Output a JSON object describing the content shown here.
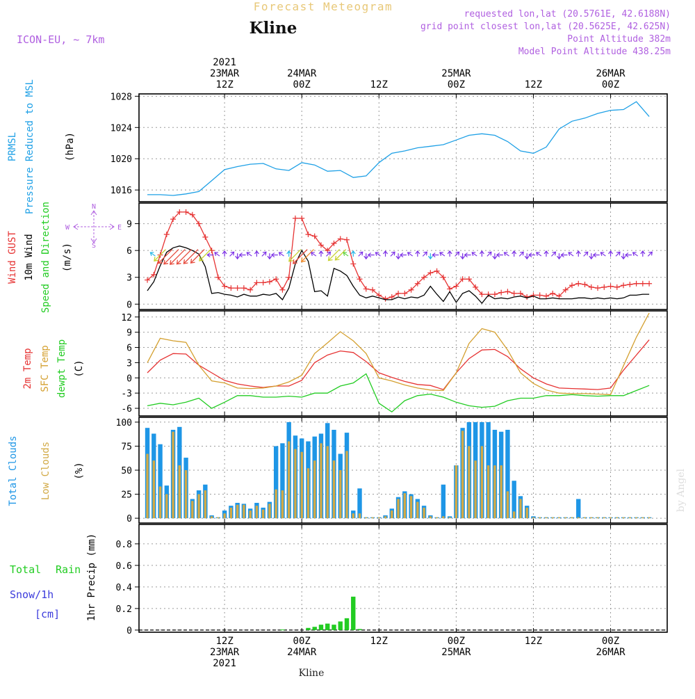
{
  "header": {
    "model": "ICON-EU, ~ 7km",
    "top_title": "Forecast Meteogram",
    "station": "Kline",
    "info_lines": [
      "requested lon,lat (20.5761E, 42.6188N)",
      "grid point closest lon,lat (20.5625E, 42.625N)",
      "Point Altitude 382m",
      "Model Point Altitude 438.25m"
    ]
  },
  "time_axis": {
    "top_labels": [
      {
        "h": 12,
        "lines": [
          "2021",
          "23MAR",
          "12Z"
        ]
      },
      {
        "h": 24,
        "lines": [
          "24MAR",
          "00Z"
        ]
      },
      {
        "h": 36,
        "lines": [
          "12Z"
        ]
      },
      {
        "h": 48,
        "lines": [
          "25MAR",
          "00Z"
        ]
      },
      {
        "h": 60,
        "lines": [
          "12Z"
        ]
      },
      {
        "h": 72,
        "lines": [
          "26MAR",
          "00Z"
        ]
      }
    ],
    "bottom_labels": [
      {
        "h": 12,
        "lines": [
          "12Z",
          "23MAR",
          "2021"
        ]
      },
      {
        "h": 24,
        "lines": [
          "00Z",
          "24MAR"
        ]
      },
      {
        "h": 36,
        "lines": [
          "12Z"
        ]
      },
      {
        "h": 48,
        "lines": [
          "00Z",
          "25MAR"
        ]
      },
      {
        "h": 60,
        "lines": [
          "12Z"
        ]
      },
      {
        "h": 72,
        "lines": [
          "00Z",
          "26MAR"
        ]
      }
    ],
    "footer": "Kline",
    "watermark": "by Angel"
  },
  "panel_labels": {
    "pressure": [
      "PRMSL",
      "Pressure Reduced to MSL",
      "(hPa)"
    ],
    "wind": [
      "Wind GUST",
      "10m Wind",
      "Speed and Direction",
      "(m/s)"
    ],
    "compass": [
      "N",
      "E",
      "S",
      "W"
    ],
    "temp": [
      "2m Temp",
      "SFC Temp",
      "dewpt Temp",
      "(C)"
    ],
    "clouds": [
      "Total Clouds",
      "Low Clouds",
      "(%)"
    ],
    "precip": [
      "Total",
      "Rain",
      "Snow/1h",
      "[cm]",
      "1hr Precip (mm)"
    ]
  },
  "colors": {
    "pressure": "#1ea0e6",
    "gust": "#e63232",
    "wind": "#000000",
    "sfc_temp": "#d4a030",
    "temp2m": "#e63232",
    "dewpt": "#22cc22",
    "total_clouds": "#1e96e6",
    "low_clouds": "#d2aa46",
    "rain": "#22cc22",
    "snow": "#3c3cdc",
    "label_purple": "#b060e0",
    "title_gold": "#e8c878"
  },
  "chart_data": [
    {
      "type": "line",
      "name": "pressure",
      "ylabel": "(hPa)",
      "ylim": [
        1014.5,
        1028.3
      ],
      "yticks": [
        1016,
        1020,
        1024,
        1028
      ],
      "x_hours": [
        0,
        2,
        4,
        6,
        8,
        10,
        12,
        14,
        16,
        18,
        20,
        22,
        24,
        26,
        28,
        30,
        32,
        34,
        36,
        38,
        40,
        42,
        44,
        46,
        48,
        50,
        52,
        54,
        56,
        58,
        60,
        62,
        64,
        66,
        68,
        70,
        72,
        74,
        76,
        78
      ],
      "series": [
        {
          "name": "PRMSL",
          "values": [
            1015.4,
            1015.4,
            1015.3,
            1015.5,
            1015.8,
            1017.2,
            1018.6,
            1019.0,
            1019.3,
            1019.4,
            1018.7,
            1018.5,
            1019.5,
            1019.2,
            1018.4,
            1018.5,
            1017.6,
            1017.8,
            1019.5,
            1020.7,
            1021.0,
            1021.4,
            1021.6,
            1021.8,
            1022.4,
            1023.0,
            1023.2,
            1023.0,
            1022.2,
            1021.0,
            1020.7,
            1021.5,
            1023.8,
            1024.8,
            1025.2,
            1025.8,
            1026.2,
            1026.3,
            1027.3,
            1025.4
          ]
        }
      ]
    },
    {
      "type": "line",
      "name": "wind",
      "ylabel": "(m/s)",
      "ylim": [
        -0.6,
        11.3
      ],
      "yticks": [
        0,
        3,
        6,
        9
      ],
      "x_hours": [
        0,
        1,
        2,
        3,
        4,
        5,
        6,
        7,
        8,
        9,
        10,
        11,
        12,
        13,
        14,
        15,
        16,
        17,
        18,
        19,
        20,
        21,
        22,
        23,
        24,
        25,
        26,
        27,
        28,
        29,
        30,
        31,
        32,
        33,
        34,
        35,
        36,
        37,
        38,
        39,
        40,
        41,
        42,
        43,
        44,
        45,
        46,
        47,
        48,
        49,
        50,
        51,
        52,
        53,
        54,
        55,
        56,
        57,
        58,
        59,
        60,
        61,
        62,
        63,
        64,
        65,
        66,
        67,
        68,
        69,
        70,
        71,
        72,
        73,
        74,
        75,
        76,
        77,
        78
      ],
      "series": [
        {
          "name": "Wind GUST",
          "values": [
            2.7,
            3.3,
            5.5,
            7.8,
            9.5,
            10.3,
            10.3,
            10.0,
            9.0,
            7.5,
            6.0,
            3.0,
            2.0,
            1.8,
            1.8,
            1.8,
            1.6,
            2.4,
            2.4,
            2.5,
            2.8,
            1.6,
            3.0,
            9.6,
            9.6,
            7.8,
            7.6,
            6.6,
            6.0,
            6.8,
            7.3,
            7.2,
            4.5,
            2.8,
            1.7,
            1.6,
            1.0,
            0.6,
            0.8,
            1.2,
            1.2,
            1.6,
            2.3,
            3.0,
            3.5,
            3.7,
            3.0,
            1.7,
            2.0,
            2.8,
            2.8,
            1.9,
            1.1,
            1.1,
            1.1,
            1.3,
            1.4,
            1.2,
            1.2,
            0.8,
            1.0,
            1.0,
            0.9,
            1.2,
            0.9,
            1.6,
            2.1,
            2.3,
            2.2,
            1.9,
            1.8,
            1.9,
            2.0,
            1.9,
            2.1,
            2.2,
            2.3,
            2.3,
            2.3
          ]
        },
        {
          "name": "10m Wind",
          "values": [
            1.5,
            2.5,
            4.3,
            5.8,
            6.3,
            6.5,
            6.3,
            6.0,
            5.6,
            4.2,
            1.2,
            1.3,
            1.1,
            1.0,
            0.8,
            1.1,
            0.9,
            0.9,
            1.1,
            1.0,
            1.2,
            0.5,
            1.8,
            4.5,
            6.0,
            4.8,
            1.4,
            1.5,
            0.9,
            4.0,
            3.7,
            3.2,
            2.0,
            1.0,
            0.7,
            0.9,
            0.7,
            0.5,
            0.5,
            0.8,
            0.6,
            0.8,
            0.7,
            1.0,
            2.0,
            1.1,
            0.3,
            1.4,
            0.2,
            1.2,
            1.5,
            0.9,
            0.1,
            1.0,
            0.6,
            0.7,
            0.6,
            0.8,
            0.9,
            0.7,
            0.9,
            0.6,
            0.6,
            0.7,
            0.6,
            0.6,
            0.6,
            0.7,
            0.7,
            0.6,
            0.7,
            0.6,
            0.7,
            0.6,
            0.7,
            1.0,
            1.0,
            1.1,
            1.1
          ]
        }
      ]
    },
    {
      "type": "line",
      "name": "temperature",
      "ylabel": "(C)",
      "ylim": [
        -7.5,
        13.2
      ],
      "yticks": [
        -6,
        -3,
        0,
        3,
        6,
        9,
        12
      ],
      "x_hours": [
        0,
        2,
        4,
        6,
        8,
        10,
        12,
        14,
        16,
        18,
        20,
        22,
        24,
        26,
        28,
        30,
        32,
        34,
        36,
        38,
        40,
        42,
        44,
        46,
        48,
        50,
        52,
        54,
        56,
        58,
        60,
        62,
        64,
        66,
        68,
        70,
        72,
        74,
        76,
        78
      ],
      "series": [
        {
          "name": "2m Temp",
          "values": [
            1.0,
            3.5,
            4.8,
            4.7,
            2.5,
            1.0,
            -0.5,
            -1.2,
            -1.6,
            -1.9,
            -1.6,
            -1.6,
            -0.5,
            3.0,
            4.5,
            5.3,
            5.0,
            3.2,
            1.0,
            0.1,
            -0.7,
            -1.3,
            -1.5,
            -2.3,
            1.0,
            3.8,
            5.5,
            5.6,
            4.2,
            1.8,
            0.0,
            -1.2,
            -2.0,
            -2.1,
            -2.2,
            -2.3,
            -2.0,
            1.5,
            4.5,
            7.5
          ]
        },
        {
          "name": "SFC Temp",
          "values": [
            3.0,
            7.8,
            7.3,
            7.0,
            2.5,
            -0.6,
            -1.0,
            -2.0,
            -2.1,
            -2.0,
            -1.6,
            -0.8,
            0.5,
            4.8,
            6.9,
            9.1,
            7.3,
            4.8,
            0.0,
            -0.6,
            -1.4,
            -2.0,
            -2.4,
            -2.5,
            1.0,
            6.8,
            9.7,
            9.0,
            5.5,
            1.0,
            -1.1,
            -2.4,
            -3.0,
            -3.1,
            -3.1,
            -3.2,
            -3.3,
            2.4,
            8.0,
            12.8
          ]
        },
        {
          "name": "dewpt Temp",
          "values": [
            -5.5,
            -5.0,
            -5.3,
            -4.8,
            -4.0,
            -6.0,
            -4.8,
            -3.5,
            -3.5,
            -3.8,
            -3.8,
            -3.6,
            -3.8,
            -3.0,
            -3.0,
            -1.6,
            -1.0,
            0.8,
            -5.0,
            -6.7,
            -4.5,
            -3.5,
            -3.2,
            -3.8,
            -4.8,
            -5.5,
            -5.8,
            -5.6,
            -4.5,
            -4.0,
            -4.0,
            -3.5,
            -3.5,
            -3.3,
            -3.5,
            -3.6,
            -3.5,
            -3.5,
            -2.5,
            -1.5
          ]
        }
      ]
    },
    {
      "type": "bar",
      "name": "clouds",
      "ylabel": "(%)",
      "ylim": [
        -5,
        105
      ],
      "yticks": [
        0,
        25,
        50,
        75,
        100
      ],
      "x_hours": [
        0,
        1,
        2,
        3,
        4,
        5,
        6,
        7,
        8,
        9,
        10,
        11,
        12,
        13,
        14,
        15,
        16,
        17,
        18,
        19,
        20,
        21,
        22,
        23,
        24,
        25,
        26,
        27,
        28,
        29,
        30,
        31,
        32,
        33,
        34,
        35,
        36,
        37,
        38,
        39,
        40,
        41,
        42,
        43,
        44,
        45,
        46,
        47,
        48,
        49,
        50,
        51,
        52,
        53,
        54,
        55,
        56,
        57,
        58,
        59,
        60,
        61,
        62,
        63,
        64,
        65,
        66,
        67,
        68,
        69,
        70,
        71,
        72,
        73,
        74,
        75,
        76,
        77,
        78
      ],
      "series": [
        {
          "name": "Total Clouds",
          "values": [
            94,
            88,
            77,
            34,
            92,
            95,
            63,
            20,
            29,
            35,
            3,
            1,
            8,
            13,
            16,
            15,
            10,
            16,
            11,
            17,
            75,
            78,
            100,
            86,
            83,
            80,
            85,
            88,
            99,
            92,
            67,
            89,
            8,
            31,
            1,
            1,
            1,
            3,
            10,
            22,
            28,
            25,
            20,
            13,
            3,
            1,
            35,
            2,
            55,
            94,
            100,
            100,
            100,
            100,
            92,
            90,
            92,
            39,
            23,
            13,
            2,
            1,
            1,
            1,
            1,
            1,
            1,
            20,
            1,
            1,
            1,
            1,
            1,
            1,
            1,
            1,
            1,
            1,
            1
          ]
        },
        {
          "name": "Low Clouds",
          "values": [
            67,
            60,
            33,
            25,
            90,
            55,
            50,
            18,
            25,
            29,
            2,
            1,
            5,
            11,
            14,
            14,
            8,
            13,
            9,
            15,
            30,
            29,
            80,
            72,
            69,
            52,
            60,
            78,
            75,
            60,
            50,
            70,
            5,
            5,
            1,
            1,
            1,
            2,
            8,
            20,
            26,
            23,
            17,
            11,
            2,
            1,
            2,
            1,
            55,
            91,
            75,
            60,
            75,
            55,
            55,
            55,
            28,
            7,
            20,
            11,
            1,
            1,
            1,
            1,
            1,
            1,
            1,
            1,
            1,
            1,
            1,
            1,
            1,
            1,
            1,
            1,
            1,
            1,
            1
          ]
        }
      ]
    },
    {
      "type": "bar",
      "name": "precipitation",
      "ylabel": "1hr Precip (mm)",
      "ylim": [
        -0.02,
        0.98
      ],
      "yticks": [
        0,
        0.2,
        0.4,
        0.6,
        0.8
      ],
      "x_hours": [
        21,
        25,
        26,
        27,
        28,
        29,
        30,
        31,
        32,
        33
      ],
      "series": [
        {
          "name": "Total Rain",
          "values": [
            0.005,
            0.02,
            0.03,
            0.05,
            0.06,
            0.05,
            0.08,
            0.11,
            0.31,
            0.01
          ]
        }
      ]
    }
  ]
}
